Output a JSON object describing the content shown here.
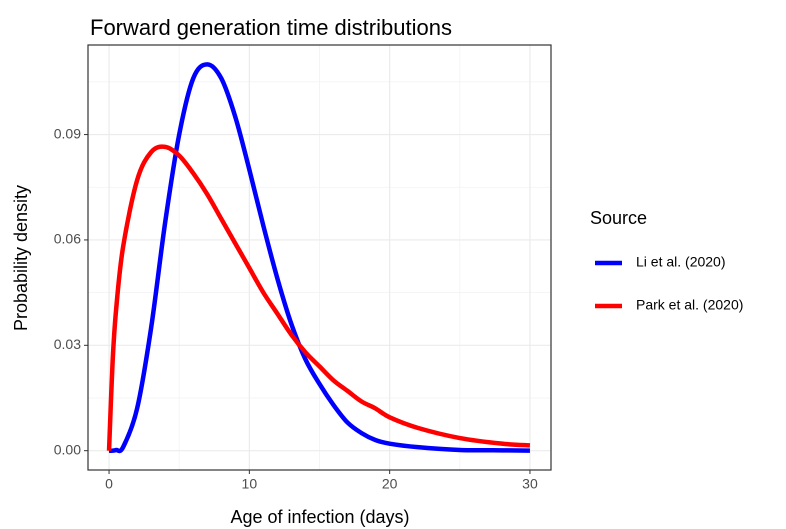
{
  "chart_data": {
    "type": "line",
    "title": "Forward generation time distributions",
    "x_label": "Age of infection (days)",
    "y_label": "Probability density",
    "legend_title": "Source",
    "x": [
      0,
      0.25,
      0.5,
      1,
      2,
      3,
      4,
      5,
      6,
      7,
      8,
      9,
      10,
      11,
      12,
      13,
      14,
      15,
      16,
      17,
      18,
      19,
      20,
      22,
      25,
      28,
      30
    ],
    "series": [
      {
        "name": "Li et al. (2020)",
        "color": "#0000ff",
        "values": [
          0,
          0,
          0.0002,
          0.001,
          0.012,
          0.035,
          0.065,
          0.09,
          0.106,
          0.11,
          0.106,
          0.095,
          0.08,
          0.064,
          0.049,
          0.036,
          0.026,
          0.019,
          0.013,
          0.008,
          0.005,
          0.003,
          0.002,
          0.001,
          0.0002,
          0.0001,
          0
        ]
      },
      {
        "name": "Park et al. (2020)",
        "color": "#ff0000",
        "values": [
          0,
          0.025,
          0.04,
          0.058,
          0.077,
          0.085,
          0.0865,
          0.084,
          0.079,
          0.073,
          0.066,
          0.059,
          0.052,
          0.045,
          0.039,
          0.033,
          0.028,
          0.024,
          0.02,
          0.017,
          0.014,
          0.012,
          0.0095,
          0.0065,
          0.0036,
          0.002,
          0.0015
        ]
      }
    ],
    "xlim": [
      -1.5,
      31.5
    ],
    "xticks": [
      0,
      10,
      20,
      30
    ],
    "xminor": [
      5,
      15,
      25
    ],
    "ylim": [
      -0.0055,
      0.1155
    ],
    "yticks": [
      {
        "value": 0,
        "label": "0.00"
      },
      0.03,
      0.06,
      0.09
    ],
    "yminor": [
      0.015,
      0.045,
      0.075,
      0.105
    ],
    "grid": true,
    "legend": "right"
  }
}
